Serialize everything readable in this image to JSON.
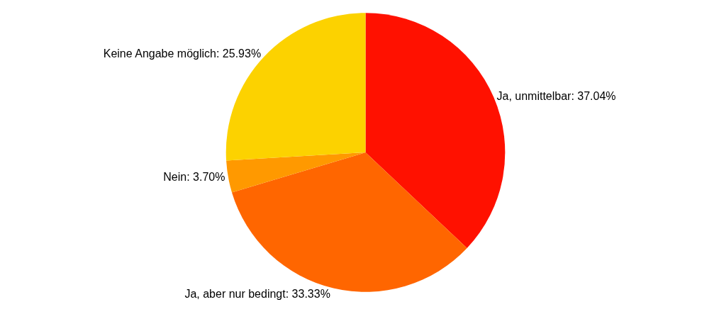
{
  "chart_data": {
    "type": "pie",
    "categories": [
      "Ja, unmittelbar",
      "Ja, aber nur bedingt",
      "Nein",
      "Keine Angabe möglich"
    ],
    "values": [
      37.04,
      33.33,
      3.7,
      25.93
    ],
    "value_labels": [
      "37.04%",
      "33.33%",
      "3.70%",
      "25.93%"
    ],
    "colors": [
      "#ff1100",
      "#ff6600",
      "#ff9900",
      "#fcd200"
    ],
    "legend": false
  }
}
